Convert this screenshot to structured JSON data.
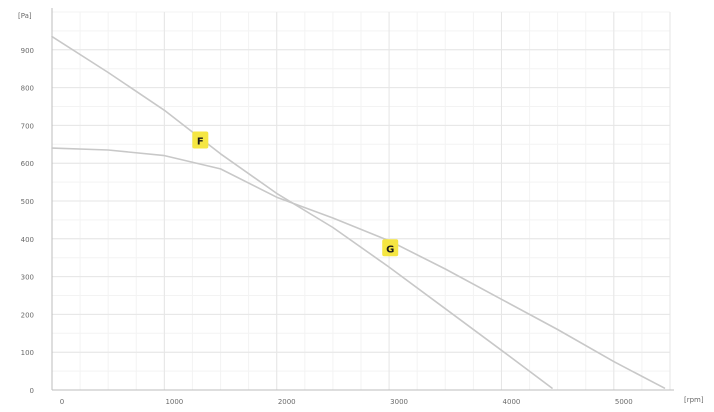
{
  "chart_data": {
    "type": "line",
    "title": "",
    "xlabel": "[rpm]",
    "ylabel": "[Pa]",
    "xlim": [
      0,
      5500
    ],
    "ylim": [
      0,
      1000
    ],
    "grid": true,
    "x_ticks": [
      {
        "value": 0,
        "label": "0"
      },
      {
        "value": 1000,
        "label": "1000"
      },
      {
        "value": 2000,
        "label": "2000"
      },
      {
        "value": 3000,
        "label": "3000"
      },
      {
        "value": 4000,
        "label": "4000"
      },
      {
        "value": 5000,
        "label": "5000"
      }
    ],
    "y_ticks": [
      {
        "value": 0,
        "label": "0"
      },
      {
        "value": 100,
        "label": "100"
      },
      {
        "value": 200,
        "label": "200"
      },
      {
        "value": 300,
        "label": "300"
      },
      {
        "value": 400,
        "label": "400"
      },
      {
        "value": 500,
        "label": "500"
      },
      {
        "value": 600,
        "label": "600"
      },
      {
        "value": 700,
        "label": "700"
      },
      {
        "value": 800,
        "label": "800"
      },
      {
        "value": 900,
        "label": "900"
      }
    ],
    "series": [
      {
        "name": "F",
        "color": "#c8c8c8",
        "label_at": {
          "x": 1320,
          "y": 660
        },
        "points": [
          {
            "x": 0,
            "y": 935
          },
          {
            "x": 500,
            "y": 840
          },
          {
            "x": 1000,
            "y": 740
          },
          {
            "x": 1500,
            "y": 625
          },
          {
            "x": 2000,
            "y": 520
          },
          {
            "x": 2500,
            "y": 430
          },
          {
            "x": 3000,
            "y": 325
          },
          {
            "x": 3500,
            "y": 215
          },
          {
            "x": 4000,
            "y": 105
          },
          {
            "x": 4450,
            "y": 5
          }
        ]
      },
      {
        "name": "G",
        "color": "#c8c8c8",
        "label_at": {
          "x": 3010,
          "y": 375
        },
        "points": [
          {
            "x": 0,
            "y": 640
          },
          {
            "x": 500,
            "y": 635
          },
          {
            "x": 1000,
            "y": 620
          },
          {
            "x": 1500,
            "y": 585
          },
          {
            "x": 2000,
            "y": 510
          },
          {
            "x": 2500,
            "y": 455
          },
          {
            "x": 3000,
            "y": 395
          },
          {
            "x": 3500,
            "y": 320
          },
          {
            "x": 4000,
            "y": 240
          },
          {
            "x": 4500,
            "y": 160
          },
          {
            "x": 5000,
            "y": 75
          },
          {
            "x": 5450,
            "y": 5
          }
        ]
      }
    ],
    "label_badge_color": "#f5e642"
  }
}
